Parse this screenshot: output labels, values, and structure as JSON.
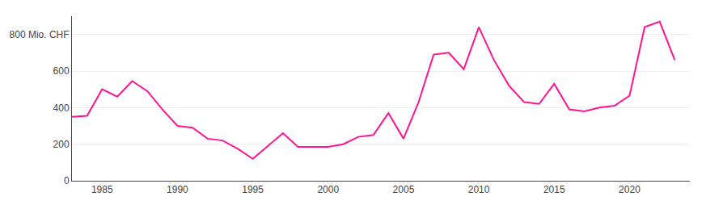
{
  "chart_data": {
    "type": "line",
    "x": [
      1983,
      1984,
      1985,
      1986,
      1987,
      1988,
      1989,
      1990,
      1991,
      1992,
      1993,
      1994,
      1995,
      1996,
      1997,
      1998,
      1999,
      2000,
      2001,
      2002,
      2003,
      2004,
      2005,
      2006,
      2007,
      2008,
      2009,
      2010,
      2011,
      2012,
      2013,
      2014,
      2015,
      2016,
      2017,
      2018,
      2019,
      2020,
      2021,
      2022,
      2023
    ],
    "values": [
      350,
      355,
      500,
      460,
      545,
      490,
      390,
      300,
      290,
      230,
      220,
      175,
      120,
      190,
      260,
      185,
      185,
      185,
      200,
      240,
      250,
      370,
      230,
      430,
      690,
      700,
      610,
      840,
      660,
      520,
      430,
      420,
      530,
      390,
      380,
      400,
      410,
      465,
      840,
      870,
      660
    ],
    "color": "#FF1493",
    "xlim": [
      1983,
      2024
    ],
    "xticks": [
      1985,
      1990,
      1995,
      2000,
      2005,
      2010,
      2015,
      2020
    ],
    "ylim": [
      0,
      900
    ],
    "yticks": [
      0,
      200,
      400,
      600,
      {
        "value": 800,
        "label": "800 Mio. CHF"
      }
    ],
    "grid": true
  }
}
